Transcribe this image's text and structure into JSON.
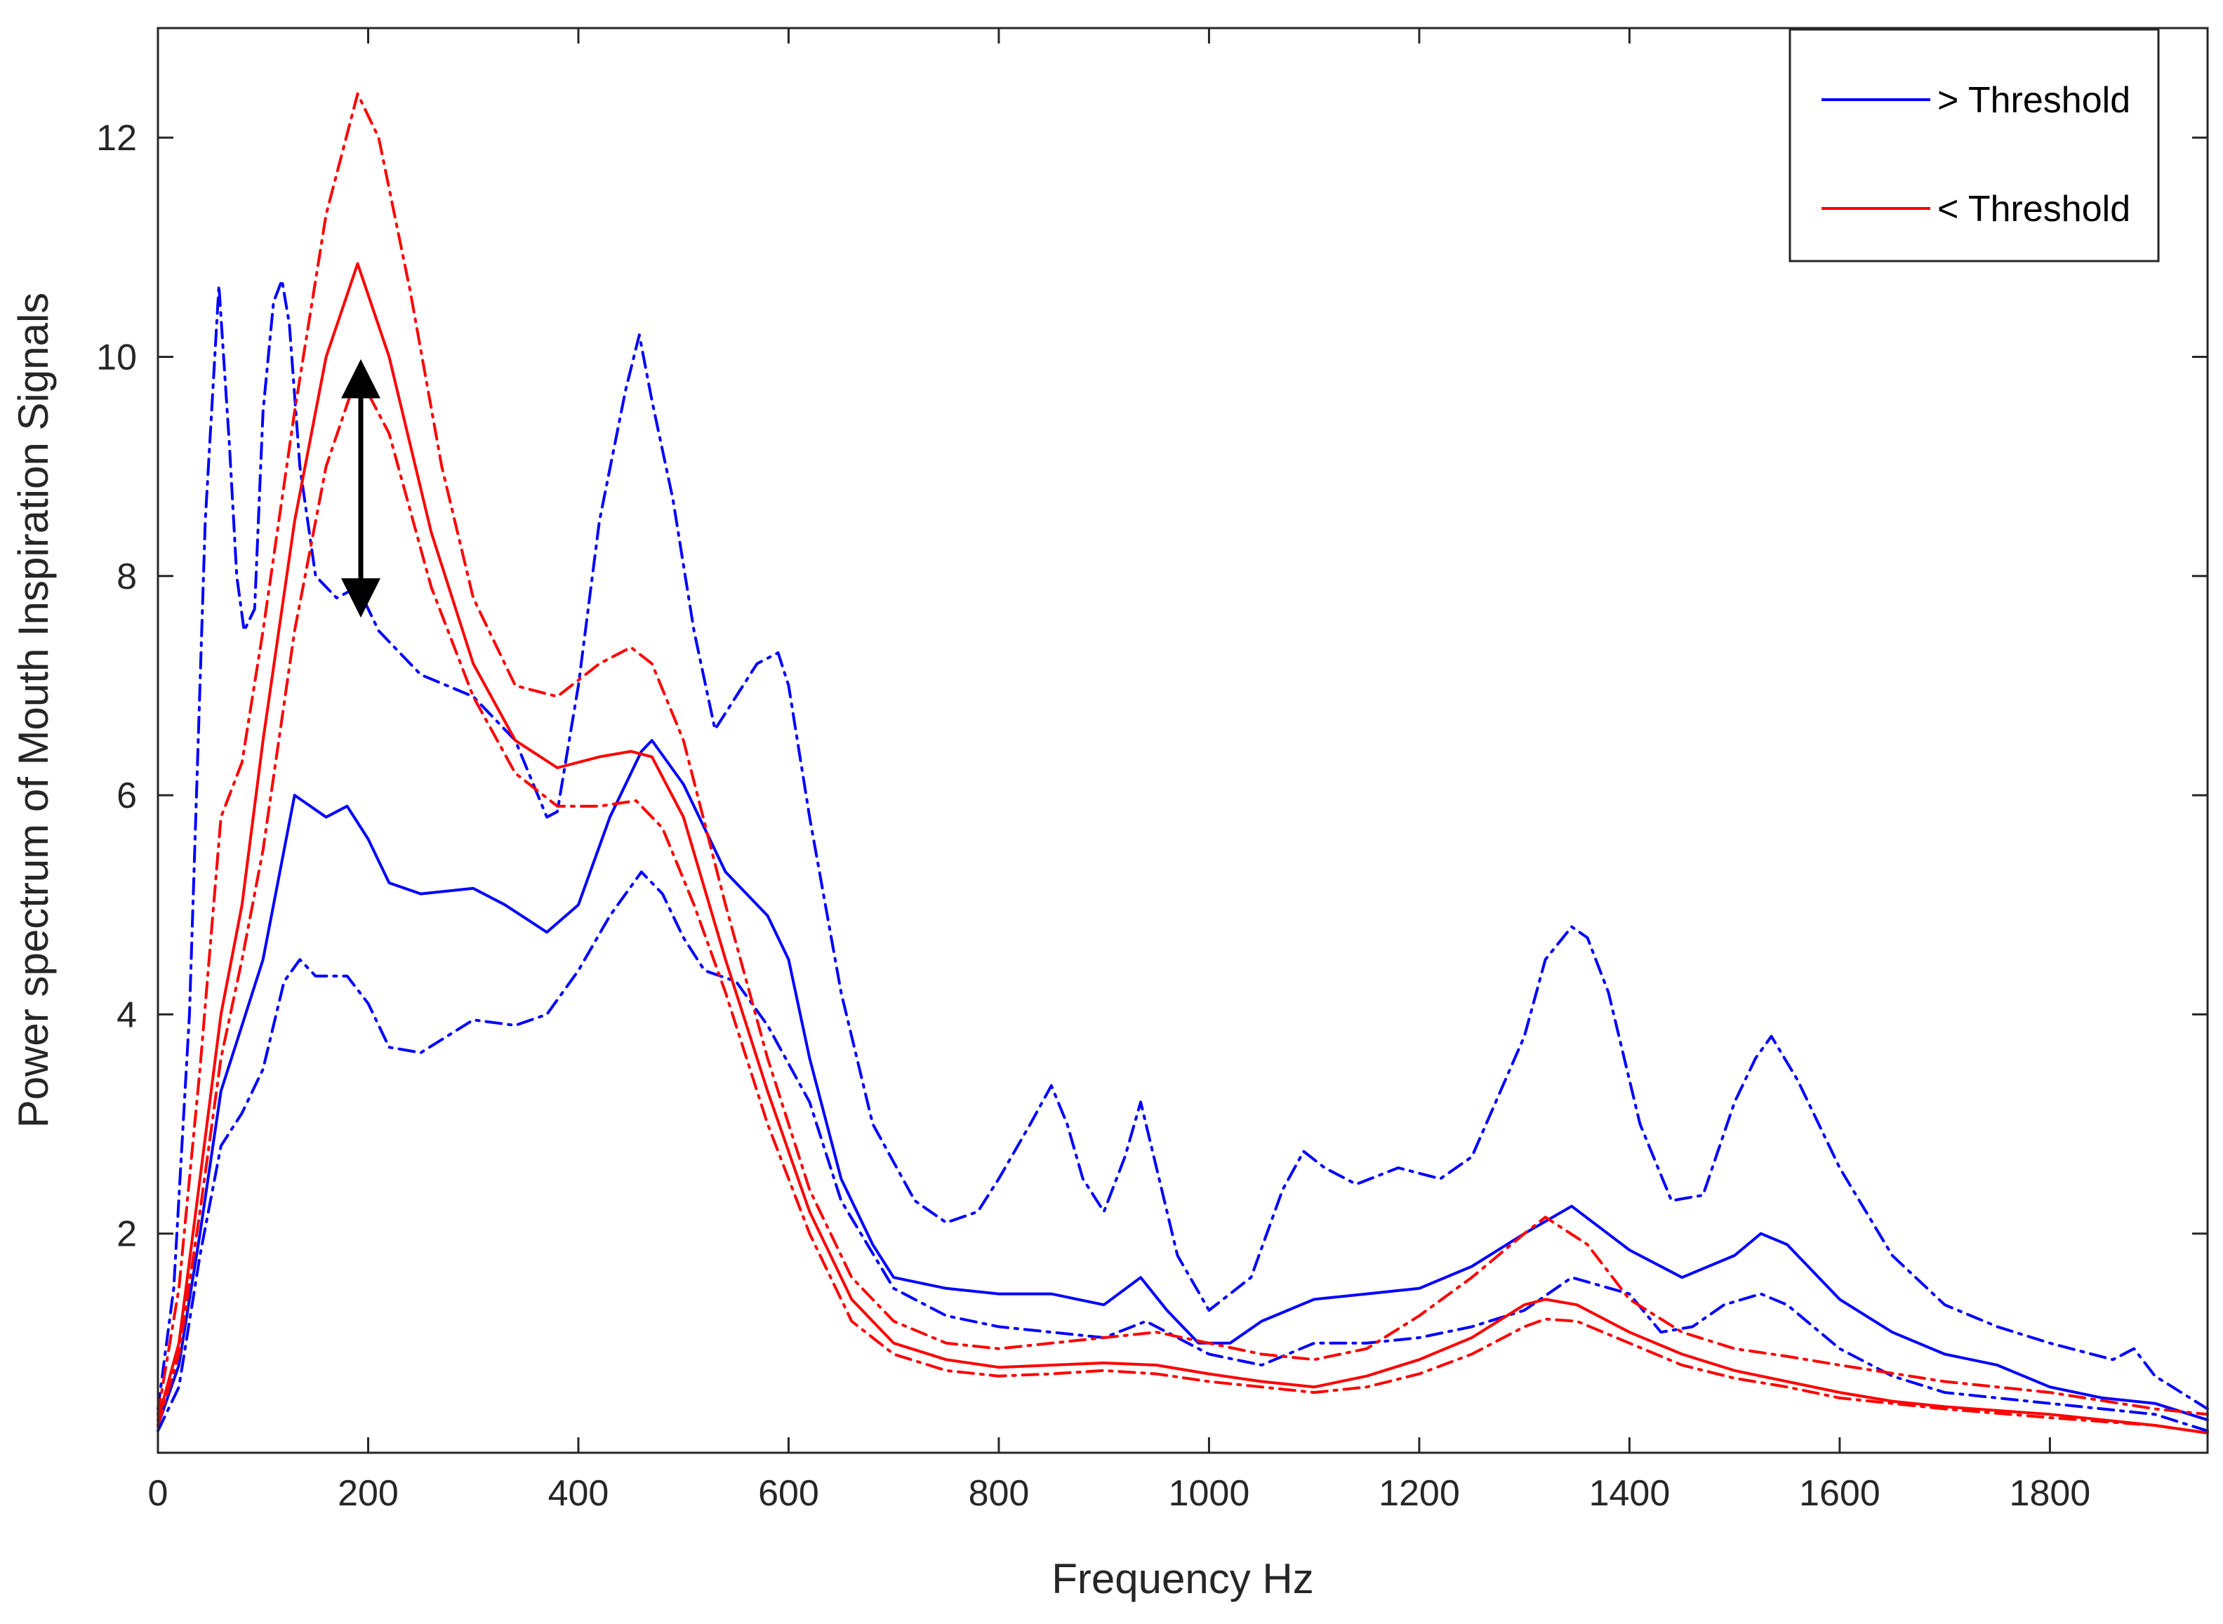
{
  "chart_data": {
    "type": "line",
    "title": "",
    "xlabel": "Frequency Hz",
    "ylabel": "Power spectrum of Mouth Inspiration Signals",
    "xlim": [
      0,
      1950
    ],
    "ylim": [
      0,
      13
    ],
    "xticks": [
      0,
      200,
      400,
      600,
      800,
      1000,
      1200,
      1400,
      1600,
      1800
    ],
    "yticks": [
      2,
      4,
      6,
      8,
      10,
      12
    ],
    "grid": false,
    "legend_position": "top-right",
    "legend": [
      {
        "label": "> Threshold",
        "color": "#0000ff"
      },
      {
        "label": "< Threshold",
        "color": "#ff0000"
      }
    ],
    "annotation": {
      "type": "double-arrow",
      "x": 193,
      "y_from": 7.8,
      "y_to": 9.8,
      "color": "#000000"
    },
    "series": [
      {
        "name": "> Threshold mean",
        "group": "> Threshold",
        "style": "solid",
        "color": "#0000ff",
        "x": [
          0,
          20,
          40,
          60,
          80,
          100,
          130,
          160,
          180,
          200,
          220,
          250,
          300,
          330,
          370,
          400,
          430,
          460,
          470,
          500,
          540,
          580,
          600,
          620,
          650,
          680,
          700,
          750,
          800,
          850,
          900,
          935,
          960,
          990,
          1020,
          1050,
          1100,
          1150,
          1200,
          1250,
          1300,
          1345,
          1400,
          1450,
          1500,
          1525,
          1550,
          1600,
          1650,
          1700,
          1750,
          1800,
          1850,
          1900,
          1950
        ],
        "values": [
          0.25,
          0.8,
          2.0,
          3.3,
          3.9,
          4.5,
          6.0,
          5.8,
          5.9,
          5.6,
          5.2,
          5.1,
          5.15,
          5.0,
          4.75,
          5.0,
          5.8,
          6.4,
          6.5,
          6.1,
          5.3,
          4.9,
          4.5,
          3.6,
          2.5,
          1.9,
          1.6,
          1.5,
          1.45,
          1.45,
          1.35,
          1.6,
          1.3,
          1.0,
          1.0,
          1.2,
          1.4,
          1.45,
          1.5,
          1.7,
          2.0,
          2.25,
          1.85,
          1.6,
          1.8,
          2.0,
          1.9,
          1.4,
          1.1,
          0.9,
          0.8,
          0.6,
          0.5,
          0.45,
          0.3
        ]
      },
      {
        "name": "> Threshold upper",
        "group": "> Threshold",
        "style": "dashdot",
        "color": "#0000ff",
        "x": [
          0,
          15,
          30,
          45,
          58,
          68,
          75,
          82,
          92,
          100,
          110,
          118,
          125,
          135,
          150,
          170,
          190,
          210,
          250,
          300,
          340,
          370,
          380,
          400,
          420,
          445,
          458,
          470,
          490,
          510,
          530,
          550,
          570,
          590,
          600,
          620,
          650,
          680,
          720,
          750,
          780,
          800,
          830,
          850,
          865,
          880,
          900,
          920,
          935,
          950,
          970,
          1000,
          1040,
          1070,
          1090,
          1110,
          1140,
          1180,
          1220,
          1250,
          1300,
          1320,
          1345,
          1360,
          1380,
          1410,
          1440,
          1470,
          1500,
          1520,
          1535,
          1560,
          1600,
          1650,
          1700,
          1750,
          1800,
          1860,
          1880,
          1900,
          1950
        ],
        "values": [
          0.4,
          1.5,
          4.0,
          8.5,
          10.65,
          9.2,
          8.0,
          7.5,
          7.7,
          9.5,
          10.5,
          10.7,
          10.3,
          9.0,
          8.0,
          7.8,
          7.9,
          7.5,
          7.1,
          6.9,
          6.5,
          5.8,
          5.85,
          7.0,
          8.5,
          9.7,
          10.2,
          9.6,
          8.7,
          7.5,
          6.6,
          6.9,
          7.2,
          7.3,
          7.0,
          5.8,
          4.2,
          3.0,
          2.3,
          2.1,
          2.2,
          2.5,
          3.0,
          3.35,
          3.0,
          2.5,
          2.2,
          2.7,
          3.2,
          2.6,
          1.8,
          1.3,
          1.6,
          2.4,
          2.75,
          2.6,
          2.45,
          2.6,
          2.5,
          2.7,
          3.8,
          4.5,
          4.8,
          4.7,
          4.2,
          3.0,
          2.3,
          2.35,
          3.2,
          3.6,
          3.8,
          3.4,
          2.6,
          1.8,
          1.35,
          1.15,
          1.0,
          0.85,
          0.95,
          0.7,
          0.4
        ]
      },
      {
        "name": "> Threshold lower",
        "group": "> Threshold",
        "style": "dashdot",
        "color": "#0000ff",
        "x": [
          0,
          20,
          40,
          60,
          80,
          100,
          120,
          135,
          150,
          180,
          200,
          220,
          250,
          300,
          340,
          370,
          400,
          430,
          460,
          480,
          500,
          520,
          550,
          580,
          620,
          650,
          700,
          750,
          800,
          850,
          900,
          940,
          1000,
          1050,
          1100,
          1150,
          1200,
          1250,
          1300,
          1345,
          1400,
          1430,
          1460,
          1490,
          1525,
          1550,
          1600,
          1650,
          1700,
          1800,
          1900,
          1950
        ],
        "values": [
          0.2,
          0.6,
          1.8,
          2.8,
          3.1,
          3.5,
          4.3,
          4.5,
          4.35,
          4.35,
          4.1,
          3.7,
          3.65,
          3.95,
          3.9,
          4.0,
          4.4,
          4.9,
          5.3,
          5.1,
          4.7,
          4.4,
          4.3,
          3.9,
          3.2,
          2.3,
          1.5,
          1.25,
          1.15,
          1.1,
          1.05,
          1.2,
          0.9,
          0.8,
          1.0,
          1.0,
          1.05,
          1.15,
          1.3,
          1.6,
          1.45,
          1.1,
          1.15,
          1.35,
          1.45,
          1.35,
          0.95,
          0.7,
          0.55,
          0.45,
          0.35,
          0.2
        ]
      },
      {
        "name": "< Threshold mean",
        "group": "< Threshold",
        "style": "solid",
        "color": "#ff0000",
        "x": [
          0,
          20,
          40,
          60,
          80,
          100,
          130,
          160,
          190,
          220,
          260,
          300,
          340,
          380,
          420,
          450,
          470,
          500,
          540,
          580,
          620,
          660,
          700,
          750,
          800,
          850,
          900,
          950,
          1000,
          1050,
          1100,
          1150,
          1200,
          1250,
          1300,
          1320,
          1350,
          1400,
          1450,
          1500,
          1550,
          1600,
          1650,
          1700,
          1800,
          1900,
          1950
        ],
        "values": [
          0.3,
          1.0,
          2.5,
          4.0,
          5.0,
          6.5,
          8.5,
          10.0,
          10.85,
          10.0,
          8.4,
          7.2,
          6.5,
          6.25,
          6.35,
          6.4,
          6.35,
          5.8,
          4.5,
          3.3,
          2.2,
          1.4,
          1.0,
          0.85,
          0.78,
          0.8,
          0.82,
          0.8,
          0.72,
          0.65,
          0.6,
          0.7,
          0.85,
          1.05,
          1.35,
          1.4,
          1.35,
          1.1,
          0.9,
          0.75,
          0.65,
          0.55,
          0.47,
          0.42,
          0.35,
          0.25,
          0.18
        ]
      },
      {
        "name": "< Threshold upper",
        "group": "< Threshold",
        "style": "dashdot",
        "color": "#ff0000",
        "x": [
          0,
          20,
          40,
          60,
          80,
          100,
          130,
          160,
          190,
          210,
          240,
          270,
          300,
          340,
          380,
          420,
          450,
          470,
          500,
          540,
          580,
          620,
          660,
          700,
          750,
          800,
          850,
          900,
          950,
          1000,
          1050,
          1100,
          1150,
          1200,
          1250,
          1300,
          1320,
          1360,
          1400,
          1450,
          1500,
          1550,
          1600,
          1700,
          1800,
          1900,
          1950
        ],
        "values": [
          0.35,
          1.5,
          3.5,
          5.8,
          6.3,
          7.5,
          9.5,
          11.3,
          12.4,
          12.0,
          10.6,
          9.0,
          7.8,
          7.0,
          6.9,
          7.2,
          7.35,
          7.2,
          6.5,
          5.0,
          3.6,
          2.4,
          1.6,
          1.2,
          1.0,
          0.95,
          1.0,
          1.05,
          1.1,
          1.0,
          0.9,
          0.85,
          0.95,
          1.25,
          1.6,
          2.0,
          2.15,
          1.9,
          1.4,
          1.1,
          0.95,
          0.88,
          0.8,
          0.65,
          0.55,
          0.4,
          0.35
        ]
      },
      {
        "name": "< Threshold lower",
        "group": "< Threshold",
        "style": "dashdot",
        "color": "#ff0000",
        "x": [
          0,
          20,
          40,
          60,
          80,
          100,
          130,
          160,
          190,
          220,
          260,
          300,
          340,
          380,
          420,
          455,
          480,
          510,
          540,
          580,
          620,
          660,
          700,
          750,
          800,
          850,
          900,
          950,
          1000,
          1050,
          1100,
          1150,
          1200,
          1250,
          1300,
          1320,
          1350,
          1400,
          1450,
          1500,
          1550,
          1600,
          1700,
          1800,
          1900,
          1950
        ],
        "values": [
          0.25,
          0.9,
          2.2,
          3.6,
          4.5,
          5.5,
          7.5,
          9.0,
          9.85,
          9.3,
          7.9,
          6.9,
          6.2,
          5.9,
          5.9,
          5.95,
          5.7,
          5.0,
          4.2,
          3.0,
          2.0,
          1.2,
          0.9,
          0.75,
          0.7,
          0.72,
          0.75,
          0.72,
          0.65,
          0.6,
          0.55,
          0.6,
          0.72,
          0.9,
          1.15,
          1.22,
          1.2,
          1.0,
          0.8,
          0.68,
          0.6,
          0.5,
          0.4,
          0.32,
          0.25,
          0.18
        ]
      }
    ]
  }
}
